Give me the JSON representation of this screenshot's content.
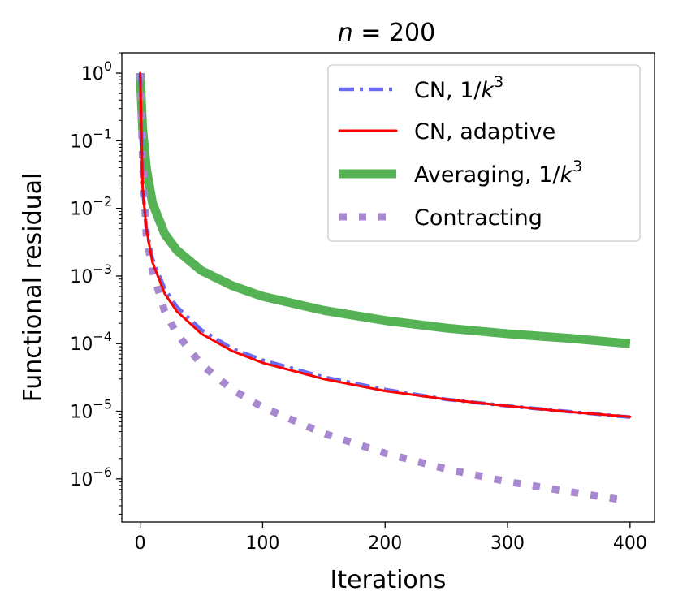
{
  "chart_data": {
    "type": "line",
    "title": "n = 200",
    "title_var": "n",
    "title_rest": " = 200",
    "xlabel": "Iterations",
    "ylabel": "Functional residual",
    "xlim": [
      -15,
      420
    ],
    "ylim": [
      2.3e-07,
      2.0
    ],
    "x_ticks": [
      0,
      100,
      200,
      300,
      400
    ],
    "y_ticks": [
      {
        "value": 1,
        "base": "10",
        "exp": "0"
      },
      {
        "value": 0.1,
        "base": "10",
        "exp": "−1"
      },
      {
        "value": 0.01,
        "base": "10",
        "exp": "−2"
      },
      {
        "value": 0.001,
        "base": "10",
        "exp": "−3"
      },
      {
        "value": 0.0001,
        "base": "10",
        "exp": "−4"
      },
      {
        "value": 1e-05,
        "base": "10",
        "exp": "−5"
      },
      {
        "value": 1e-06,
        "base": "10",
        "exp": "−6"
      }
    ],
    "legend_position": "top-right",
    "series": [
      {
        "name": "CN, 1/k^3",
        "label_main": "CN, 1/",
        "label_var": "k",
        "label_sup": "3",
        "color": "#6b6bef",
        "style": "dashdot",
        "x": [
          0,
          2,
          5,
          10,
          20,
          30,
          50,
          75,
          100,
          150,
          200,
          250,
          300,
          350,
          400
        ],
        "y": [
          1.0,
          0.02,
          0.005,
          0.0018,
          0.00065,
          0.00035,
          0.00016,
          8.5e-05,
          5.7e-05,
          3.2e-05,
          2.1e-05,
          1.5e-05,
          1.2e-05,
          9.9e-06,
          8.2e-06
        ]
      },
      {
        "name": "CN, adaptive",
        "label_main": "CN, adaptive",
        "label_var": "",
        "label_sup": "",
        "color": "#ff0000",
        "style": "solid",
        "x": [
          0,
          2,
          5,
          10,
          20,
          30,
          50,
          75,
          100,
          150,
          200,
          250,
          300,
          350,
          400
        ],
        "y": [
          1.0,
          0.02,
          0.005,
          0.0016,
          0.00055,
          0.0003,
          0.00014,
          7.8e-05,
          5.2e-05,
          3e-05,
          2e-05,
          1.5e-05,
          1.2e-05,
          9.8e-06,
          8.3e-06
        ]
      },
      {
        "name": "Averaging, 1/k^3",
        "label_main": "Averaging, 1/",
        "label_var": "k",
        "label_sup": "3",
        "color": "#55b255",
        "style": "thick",
        "x": [
          0,
          2,
          5,
          10,
          20,
          30,
          50,
          75,
          100,
          150,
          200,
          250,
          300,
          350,
          400
        ],
        "y": [
          1.0,
          0.15,
          0.04,
          0.012,
          0.0042,
          0.0024,
          0.0012,
          0.00072,
          0.0005,
          0.00031,
          0.00022,
          0.00017,
          0.00014,
          0.00012,
          0.0001
        ]
      },
      {
        "name": "Contracting",
        "label_main": "Contracting",
        "label_var": "",
        "label_sup": "",
        "color": "#a888d0",
        "style": "dotted",
        "x": [
          0,
          2,
          5,
          10,
          20,
          30,
          50,
          75,
          100,
          150,
          200,
          250,
          300,
          350,
          390
        ],
        "y": [
          1.0,
          0.05,
          0.004,
          0.0012,
          0.0003,
          0.00014,
          4.9e-05,
          2.1e-05,
          1.15e-05,
          4.7e-06,
          2.4e-06,
          1.4e-06,
          9.1e-07,
          6.5e-07,
          5e-07
        ]
      }
    ]
  }
}
